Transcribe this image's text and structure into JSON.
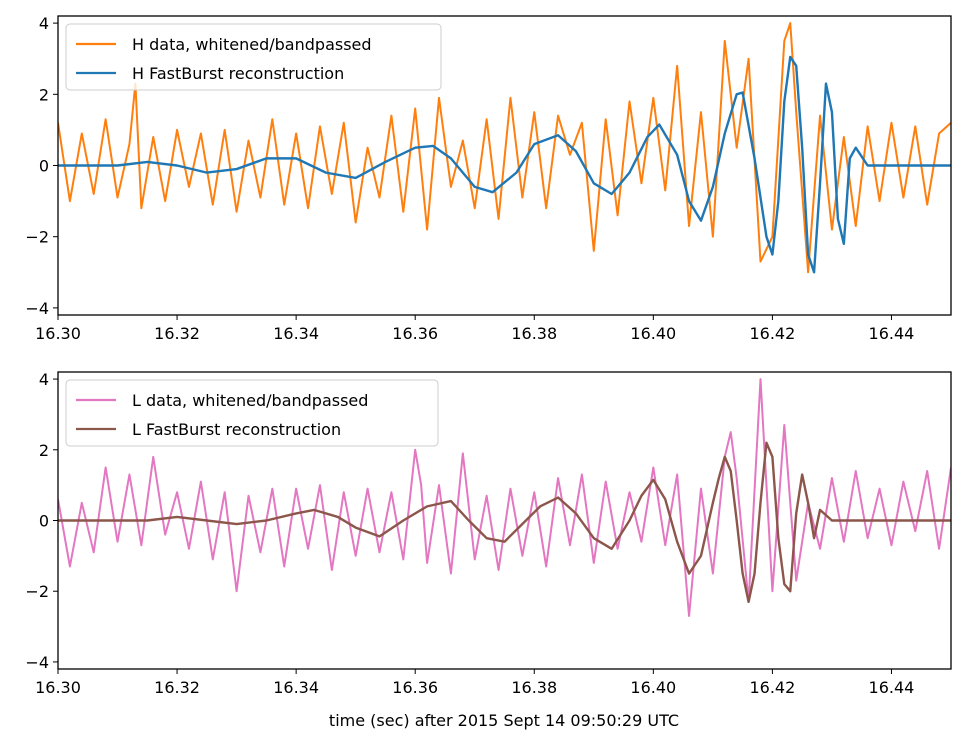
{
  "chart_data": [
    {
      "type": "line",
      "panel": "top",
      "xlim": [
        16.3,
        16.45
      ],
      "ylim": [
        -4.2,
        4.2
      ],
      "xticks": [
        "16.30",
        "16.32",
        "16.34",
        "16.36",
        "16.38",
        "16.40",
        "16.42",
        "16.44"
      ],
      "xtick_values": [
        16.3,
        16.32,
        16.34,
        16.36,
        16.38,
        16.4,
        16.42,
        16.44
      ],
      "yticks": [
        "−4",
        "−2",
        "0",
        "2",
        "4"
      ],
      "ytick_values": [
        -4,
        -2,
        0,
        2,
        4
      ],
      "xlabel": "",
      "ylabel": "",
      "grid": false,
      "legend_position": "top-left",
      "series": [
        {
          "name": "H data, whitened/bandpassed",
          "color": "#ff7f0e",
          "x": [
            16.3,
            16.302,
            16.304,
            16.306,
            16.308,
            16.31,
            16.312,
            16.313,
            16.314,
            16.316,
            16.318,
            16.32,
            16.322,
            16.324,
            16.326,
            16.328,
            16.33,
            16.332,
            16.334,
            16.336,
            16.338,
            16.34,
            16.342,
            16.344,
            16.346,
            16.348,
            16.35,
            16.352,
            16.354,
            16.356,
            16.358,
            16.36,
            16.362,
            16.364,
            16.366,
            16.368,
            16.37,
            16.372,
            16.374,
            16.376,
            16.378,
            16.38,
            16.382,
            16.384,
            16.386,
            16.388,
            16.39,
            16.392,
            16.394,
            16.396,
            16.398,
            16.4,
            16.402,
            16.404,
            16.406,
            16.408,
            16.41,
            16.412,
            16.414,
            16.416,
            16.418,
            16.42,
            16.422,
            16.423,
            16.424,
            16.426,
            16.428,
            16.43,
            16.432,
            16.434,
            16.436,
            16.438,
            16.44,
            16.442,
            16.444,
            16.446,
            16.448,
            16.45
          ],
          "y": [
            1.2,
            -1.0,
            0.9,
            -0.8,
            1.3,
            -0.9,
            0.6,
            2.3,
            -1.2,
            0.8,
            -1.0,
            1.0,
            -0.6,
            0.9,
            -1.1,
            1.0,
            -1.3,
            0.7,
            -0.9,
            1.3,
            -1.1,
            0.9,
            -1.2,
            1.1,
            -0.8,
            1.2,
            -1.6,
            0.5,
            -0.9,
            1.4,
            -1.3,
            1.6,
            -1.8,
            1.9,
            -0.6,
            0.7,
            -1.2,
            1.3,
            -1.5,
            1.9,
            -0.9,
            1.5,
            -1.2,
            1.4,
            0.3,
            1.2,
            -2.4,
            1.3,
            -1.4,
            1.8,
            -0.5,
            1.9,
            -0.7,
            2.8,
            -1.7,
            1.5,
            -2.0,
            3.5,
            0.5,
            3.0,
            -2.7,
            -2.0,
            3.5,
            4.0,
            1.5,
            -3.0,
            1.4,
            -1.8,
            0.8,
            -1.7,
            1.1,
            -1.0,
            1.2,
            -0.9,
            1.1,
            -1.1,
            0.9,
            1.2
          ]
        },
        {
          "name": "H FastBurst reconstruction",
          "color": "#1f77b4",
          "x": [
            16.3,
            16.305,
            16.31,
            16.315,
            16.32,
            16.325,
            16.33,
            16.335,
            16.34,
            16.345,
            16.35,
            16.355,
            16.36,
            16.363,
            16.366,
            16.37,
            16.373,
            16.377,
            16.38,
            16.384,
            16.387,
            16.39,
            16.393,
            16.396,
            16.399,
            16.401,
            16.404,
            16.406,
            16.408,
            16.41,
            16.412,
            16.414,
            16.415,
            16.417,
            16.419,
            16.42,
            16.421,
            16.422,
            16.423,
            16.424,
            16.425,
            16.426,
            16.427,
            16.428,
            16.429,
            16.43,
            16.431,
            16.432,
            16.433,
            16.434,
            16.436,
            16.44,
            16.45
          ],
          "y": [
            0.0,
            0.0,
            0.0,
            0.1,
            0.0,
            -0.2,
            -0.1,
            0.2,
            0.2,
            -0.2,
            -0.35,
            0.1,
            0.5,
            0.55,
            0.2,
            -0.6,
            -0.75,
            -0.2,
            0.6,
            0.85,
            0.4,
            -0.5,
            -0.8,
            -0.2,
            0.8,
            1.15,
            0.3,
            -1.0,
            -1.55,
            -0.6,
            0.9,
            2.0,
            2.05,
            0.2,
            -2.0,
            -2.5,
            -1.0,
            1.8,
            3.05,
            2.8,
            0.5,
            -2.5,
            -3.0,
            -0.5,
            2.3,
            1.5,
            -1.5,
            -2.2,
            0.2,
            0.5,
            0.0,
            0.0,
            0.0
          ]
        }
      ]
    },
    {
      "type": "line",
      "panel": "bottom",
      "xlim": [
        16.3,
        16.45
      ],
      "ylim": [
        -4.2,
        4.2
      ],
      "xticks": [
        "16.30",
        "16.32",
        "16.34",
        "16.36",
        "16.38",
        "16.40",
        "16.42",
        "16.44"
      ],
      "xtick_values": [
        16.3,
        16.32,
        16.34,
        16.36,
        16.38,
        16.4,
        16.42,
        16.44
      ],
      "yticks": [
        "−4",
        "−2",
        "0",
        "2",
        "4"
      ],
      "ytick_values": [
        -4,
        -2,
        0,
        2,
        4
      ],
      "xlabel": "time (sec) after 2015 Sept 14 09:50:29 UTC",
      "ylabel": "",
      "grid": false,
      "legend_position": "top-left",
      "series": [
        {
          "name": "L data, whitened/bandpassed",
          "color": "#e377c2",
          "x": [
            16.3,
            16.302,
            16.304,
            16.306,
            16.308,
            16.31,
            16.312,
            16.314,
            16.316,
            16.318,
            16.32,
            16.322,
            16.324,
            16.326,
            16.328,
            16.33,
            16.332,
            16.334,
            16.336,
            16.338,
            16.34,
            16.342,
            16.344,
            16.346,
            16.348,
            16.35,
            16.352,
            16.354,
            16.356,
            16.358,
            16.36,
            16.361,
            16.362,
            16.364,
            16.366,
            16.368,
            16.37,
            16.372,
            16.374,
            16.376,
            16.378,
            16.38,
            16.382,
            16.384,
            16.386,
            16.388,
            16.39,
            16.392,
            16.394,
            16.396,
            16.398,
            16.4,
            16.402,
            16.404,
            16.406,
            16.408,
            16.41,
            16.412,
            16.413,
            16.414,
            16.416,
            16.418,
            16.4185,
            16.42,
            16.422,
            16.424,
            16.426,
            16.428,
            16.43,
            16.432,
            16.434,
            16.436,
            16.438,
            16.44,
            16.442,
            16.444,
            16.446,
            16.448,
            16.45
          ],
          "y": [
            0.6,
            -1.3,
            0.5,
            -0.9,
            1.5,
            -0.6,
            1.3,
            -0.7,
            1.8,
            -0.4,
            0.8,
            -0.8,
            1.1,
            -1.1,
            0.8,
            -2.0,
            0.7,
            -0.9,
            0.9,
            -1.3,
            0.9,
            -0.8,
            1.0,
            -1.4,
            0.8,
            -1.0,
            0.9,
            -0.9,
            0.8,
            -1.1,
            2.0,
            1.0,
            -1.2,
            1.0,
            -1.5,
            1.9,
            -1.1,
            0.7,
            -1.4,
            0.9,
            -1.0,
            0.8,
            -1.3,
            1.2,
            -0.7,
            1.3,
            -1.2,
            1.1,
            -0.8,
            0.8,
            -0.6,
            1.5,
            -0.7,
            1.3,
            -2.7,
            0.9,
            -1.5,
            1.8,
            2.5,
            1.2,
            -2.3,
            4.0,
            2.5,
            -2.0,
            2.7,
            -1.7,
            0.5,
            -0.8,
            1.2,
            -0.6,
            1.4,
            -0.5,
            0.9,
            -0.7,
            1.1,
            -0.3,
            1.4,
            -0.8,
            1.5
          ]
        },
        {
          "name": "L FastBurst reconstruction",
          "color": "#8c564b",
          "x": [
            16.3,
            16.305,
            16.31,
            16.315,
            16.32,
            16.325,
            16.33,
            16.335,
            16.34,
            16.343,
            16.347,
            16.35,
            16.354,
            16.358,
            16.362,
            16.366,
            16.369,
            16.372,
            16.375,
            16.378,
            16.381,
            16.384,
            16.387,
            16.39,
            16.393,
            16.396,
            16.398,
            16.4,
            16.402,
            16.404,
            16.406,
            16.408,
            16.41,
            16.411,
            16.412,
            16.413,
            16.414,
            16.415,
            16.416,
            16.417,
            16.418,
            16.419,
            16.42,
            16.421,
            16.422,
            16.423,
            16.424,
            16.425,
            16.426,
            16.427,
            16.428,
            16.43,
            16.44,
            16.45
          ],
          "y": [
            0.0,
            0.0,
            0.0,
            0.0,
            0.1,
            0.0,
            -0.1,
            0.0,
            0.2,
            0.3,
            0.1,
            -0.2,
            -0.45,
            0.0,
            0.4,
            0.55,
            0.0,
            -0.5,
            -0.6,
            -0.1,
            0.4,
            0.65,
            0.2,
            -0.5,
            -0.8,
            0.0,
            0.7,
            1.15,
            0.6,
            -0.6,
            -1.5,
            -1.0,
            0.5,
            1.2,
            1.8,
            1.4,
            0.0,
            -1.5,
            -2.3,
            -1.5,
            0.5,
            2.2,
            1.8,
            -0.5,
            -1.8,
            -2.0,
            0.2,
            1.3,
            0.5,
            -0.5,
            0.3,
            0.0,
            0.0,
            0.0
          ]
        }
      ]
    }
  ]
}
